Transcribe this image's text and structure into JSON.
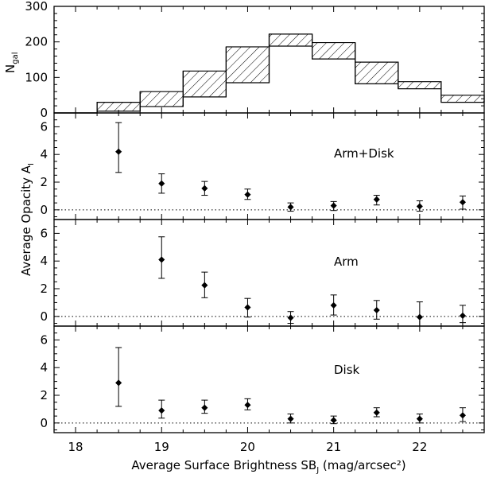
{
  "chart_data": [
    {
      "type": "histogram",
      "panel": "histogram",
      "ylabel_main": "N",
      "ylabel_sub": "gal",
      "ylim": [
        0,
        300
      ],
      "yticks": [
        0,
        100,
        200,
        300
      ],
      "xlim": [
        17.75,
        22.75
      ],
      "bin_edges": [
        17.75,
        18.25,
        18.75,
        19.25,
        19.75,
        20.25,
        20.75,
        21.25,
        21.75,
        22.25,
        22.75
      ],
      "lower_counts": [
        0,
        5,
        18,
        45,
        85,
        188,
        152,
        82,
        68,
        30
      ],
      "upper_counts": [
        0,
        30,
        60,
        118,
        186,
        222,
        198,
        143,
        88,
        50
      ]
    },
    {
      "type": "scatter",
      "panel": "arm-disk",
      "label": "Arm+Disk",
      "ylim": [
        -0.7,
        7.0
      ],
      "yticks": [
        0,
        2,
        4,
        6
      ],
      "points": [
        {
          "x": 18.5,
          "y": 4.2,
          "lo": 2.7,
          "hi": 6.3
        },
        {
          "x": 19.0,
          "y": 1.9,
          "lo": 1.2,
          "hi": 2.6
        },
        {
          "x": 19.5,
          "y": 1.55,
          "lo": 1.05,
          "hi": 2.05
        },
        {
          "x": 20.0,
          "y": 1.1,
          "lo": 0.75,
          "hi": 1.5
        },
        {
          "x": 20.5,
          "y": 0.2,
          "lo": -0.1,
          "hi": 0.5
        },
        {
          "x": 21.0,
          "y": 0.3,
          "lo": -0.05,
          "hi": 0.6
        },
        {
          "x": 21.5,
          "y": 0.75,
          "lo": 0.35,
          "hi": 1.05
        },
        {
          "x": 22.0,
          "y": 0.25,
          "lo": -0.1,
          "hi": 0.65
        },
        {
          "x": 22.5,
          "y": 0.55,
          "lo": 0.05,
          "hi": 1.0
        }
      ]
    },
    {
      "type": "scatter",
      "panel": "arm",
      "label": "Arm",
      "ylim": [
        -0.7,
        7.0
      ],
      "yticks": [
        0,
        2,
        4,
        6
      ],
      "points": [
        {
          "x": 19.0,
          "y": 4.1,
          "lo": 2.75,
          "hi": 5.75
        },
        {
          "x": 19.5,
          "y": 2.25,
          "lo": 1.35,
          "hi": 3.2
        },
        {
          "x": 20.0,
          "y": 0.65,
          "lo": -0.05,
          "hi": 1.3
        },
        {
          "x": 20.5,
          "y": -0.1,
          "lo": -0.5,
          "hi": 0.35
        },
        {
          "x": 21.0,
          "y": 0.8,
          "lo": 0.1,
          "hi": 1.55
        },
        {
          "x": 21.5,
          "y": 0.45,
          "lo": -0.2,
          "hi": 1.15
        },
        {
          "x": 22.0,
          "y": -0.05,
          "lo": -0.75,
          "hi": 1.05
        },
        {
          "x": 22.5,
          "y": 0.05,
          "lo": -0.45,
          "hi": 0.8
        }
      ]
    },
    {
      "type": "scatter",
      "panel": "disk",
      "label": "Disk",
      "ylim": [
        -0.7,
        7.0
      ],
      "yticks": [
        0,
        2,
        4,
        6
      ],
      "points": [
        {
          "x": 18.5,
          "y": 2.9,
          "lo": 1.2,
          "hi": 5.45
        },
        {
          "x": 19.0,
          "y": 0.9,
          "lo": 0.35,
          "hi": 1.65
        },
        {
          "x": 19.5,
          "y": 1.1,
          "lo": 0.7,
          "hi": 1.65
        },
        {
          "x": 20.0,
          "y": 1.3,
          "lo": 0.95,
          "hi": 1.75
        },
        {
          "x": 20.5,
          "y": 0.3,
          "lo": 0.0,
          "hi": 0.65
        },
        {
          "x": 21.0,
          "y": 0.2,
          "lo": -0.05,
          "hi": 0.5
        },
        {
          "x": 21.5,
          "y": 0.75,
          "lo": 0.45,
          "hi": 1.1
        },
        {
          "x": 22.0,
          "y": 0.3,
          "lo": 0.0,
          "hi": 0.65
        },
        {
          "x": 22.5,
          "y": 0.55,
          "lo": 0.1,
          "hi": 1.1
        }
      ]
    }
  ],
  "xaxis": {
    "xlim": [
      17.75,
      22.75
    ],
    "ticks": [
      18,
      19,
      20,
      21,
      22
    ],
    "title": "Average Surface Brightness SB",
    "title_sub": "J",
    "title_unit": " (mag/arcsec²)"
  },
  "shared_ylabel": {
    "main": "Average Opacity A",
    "sub": "I"
  }
}
